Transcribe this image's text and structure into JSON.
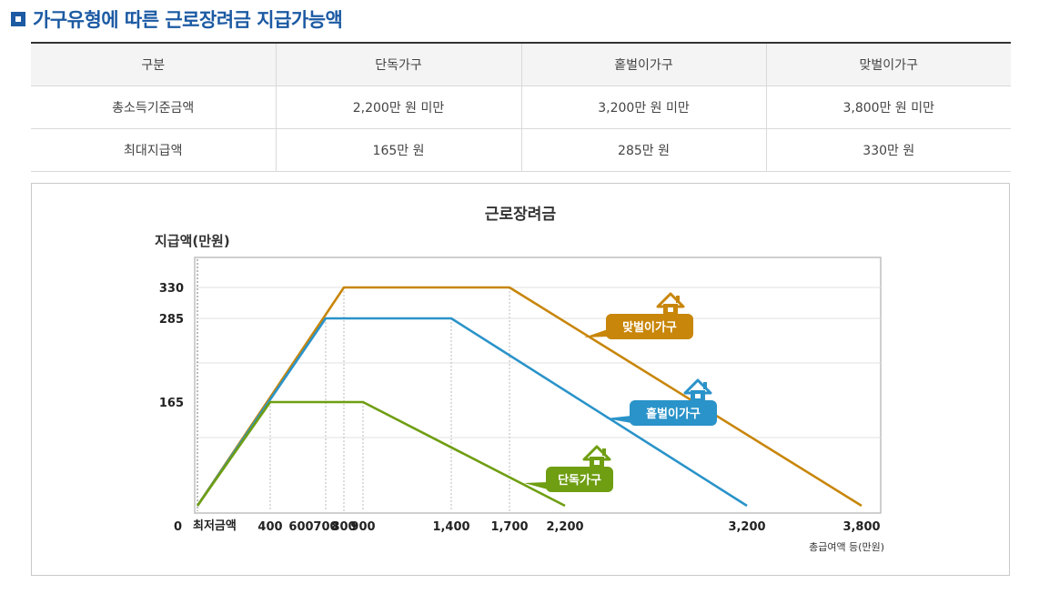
{
  "page": {
    "title": "가구유형에 따른 근로장려금 지급가능액"
  },
  "table": {
    "headers": [
      "구분",
      "단독가구",
      "홑벌이가구",
      "맞벌이가구"
    ],
    "rows": [
      [
        "총소득기준금액",
        "2,200만 원 미만",
        "3,200만 원 미만",
        "3,800만 원 미만"
      ],
      [
        "최대지급액",
        "165만 원",
        "285만 원",
        "330만 원"
      ]
    ]
  },
  "chart_data": {
    "type": "line",
    "title": "근로장려금",
    "ylabel": "지급액(만원)",
    "xlabel": "총급여액 등(만원)",
    "origin_label": "0",
    "min_label": "최저금액",
    "x_ticks": [
      {
        "value": 400,
        "label": "400"
      },
      {
        "value": 600,
        "label": "600"
      },
      {
        "value": 700,
        "label": "700"
      },
      {
        "value": 800,
        "label": "800"
      },
      {
        "value": 900,
        "label": "900"
      },
      {
        "value": 1400,
        "label": "1,400"
      },
      {
        "value": 1700,
        "label": "1,700"
      },
      {
        "value": 2200,
        "label": "2,200"
      },
      {
        "value": 3200,
        "label": "3,200"
      },
      {
        "value": 3800,
        "label": "3,800"
      }
    ],
    "y_ticks": [
      {
        "value": 165,
        "label": "165"
      },
      {
        "value": 285,
        "label": "285"
      },
      {
        "value": 330,
        "label": "330"
      }
    ],
    "series": [
      {
        "name": "맞벌이가구",
        "color": "#c8860a",
        "points": [
          [
            0,
            0
          ],
          [
            800,
            330
          ],
          [
            1700,
            330
          ],
          [
            3800,
            0
          ]
        ]
      },
      {
        "name": "홑벌이가구",
        "color": "#2a93c9",
        "points": [
          [
            0,
            0
          ],
          [
            700,
            285
          ],
          [
            1400,
            285
          ],
          [
            3200,
            0
          ]
        ]
      },
      {
        "name": "단독가구",
        "color": "#6f9e12",
        "points": [
          [
            0,
            0
          ],
          [
            400,
            165
          ],
          [
            900,
            165
          ],
          [
            2200,
            0
          ]
        ]
      }
    ]
  }
}
